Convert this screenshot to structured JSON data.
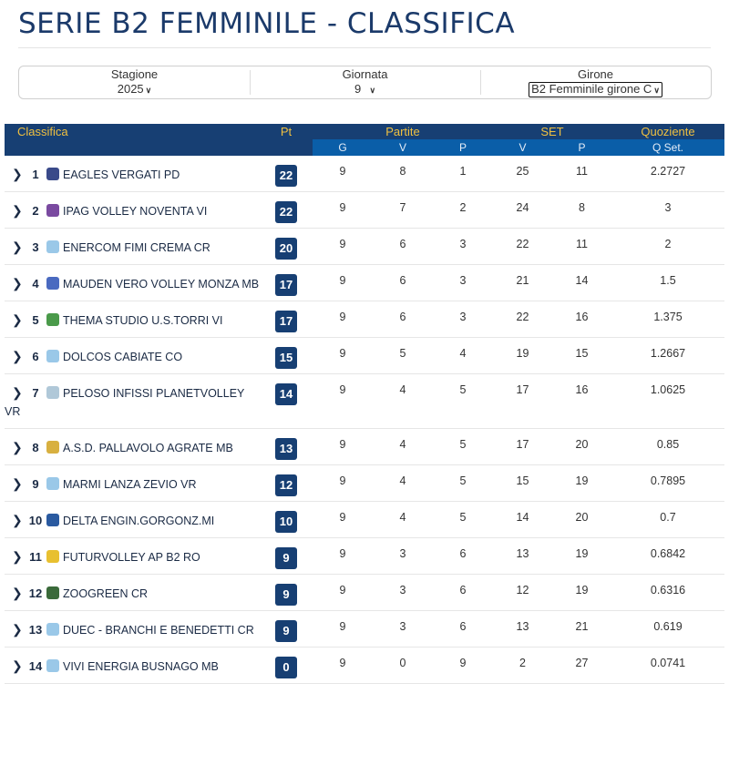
{
  "title": "SERIE B2 FEMMINILE - CLASSIFICA",
  "filters": [
    {
      "label": "Stagione",
      "value": "2025"
    },
    {
      "label": "Giornata",
      "value": "9"
    },
    {
      "label": "Girone",
      "value": "B2 Femminile girone C"
    }
  ],
  "header": {
    "classifica": "Classifica",
    "pt": "Pt",
    "partite": "Partite",
    "set": "SET",
    "quoziente": "Quoziente",
    "g": "G",
    "v": "V",
    "p": "P",
    "sv": "V",
    "sp": "P",
    "qset": "Q Set."
  },
  "colors": {
    "header": "#173f73",
    "subheader": "#0a5ea8",
    "accent": "#f0c040"
  },
  "rows": [
    {
      "rank": "1",
      "team": "EAGLES VERGATI PD",
      "pt": "22",
      "g": "9",
      "v": "8",
      "p": "1",
      "sv": "25",
      "sp": "11",
      "q": "2.2727",
      "logo": "#3a4a8a"
    },
    {
      "rank": "2",
      "team": "IPAG VOLLEY NOVENTA VI",
      "pt": "22",
      "g": "9",
      "v": "7",
      "p": "2",
      "sv": "24",
      "sp": "8",
      "q": "3",
      "logo": "#7a4aa0"
    },
    {
      "rank": "3",
      "team": "ENERCOM FIMI CREMA CR",
      "pt": "20",
      "g": "9",
      "v": "6",
      "p": "3",
      "sv": "22",
      "sp": "11",
      "q": "2",
      "logo": "#9ac8e8"
    },
    {
      "rank": "4",
      "team": "MAUDEN VERO VOLLEY MONZA MB",
      "pt": "17",
      "g": "9",
      "v": "6",
      "p": "3",
      "sv": "21",
      "sp": "14",
      "q": "1.5",
      "logo": "#4a6ac0"
    },
    {
      "rank": "5",
      "team": "THEMA STUDIO U.S.TORRI VI",
      "pt": "17",
      "g": "9",
      "v": "6",
      "p": "3",
      "sv": "22",
      "sp": "16",
      "q": "1.375",
      "logo": "#4a9a4a"
    },
    {
      "rank": "6",
      "team": "DOLCOS CABIATE CO",
      "pt": "15",
      "g": "9",
      "v": "5",
      "p": "4",
      "sv": "19",
      "sp": "15",
      "q": "1.2667",
      "logo": "#9ac8e8"
    },
    {
      "rank": "7",
      "team": "PELOSO INFISSI PLANETVOLLEY VR",
      "pt": "14",
      "g": "9",
      "v": "4",
      "p": "5",
      "sv": "17",
      "sp": "16",
      "q": "1.0625",
      "logo": "#b0c8d8"
    },
    {
      "rank": "8",
      "team": "A.S.D. PALLAVOLO AGRATE MB",
      "pt": "13",
      "g": "9",
      "v": "4",
      "p": "5",
      "sv": "17",
      "sp": "20",
      "q": "0.85",
      "logo": "#d8b040"
    },
    {
      "rank": "9",
      "team": "MARMI LANZA ZEVIO VR",
      "pt": "12",
      "g": "9",
      "v": "4",
      "p": "5",
      "sv": "15",
      "sp": "19",
      "q": "0.7895",
      "logo": "#9ac8e8"
    },
    {
      "rank": "10",
      "team": "DELTA ENGIN.GORGONZ.MI",
      "pt": "10",
      "g": "9",
      "v": "4",
      "p": "5",
      "sv": "14",
      "sp": "20",
      "q": "0.7",
      "logo": "#2a5aa0"
    },
    {
      "rank": "11",
      "team": "FUTURVOLLEY AP B2 RO",
      "pt": "9",
      "g": "9",
      "v": "3",
      "p": "6",
      "sv": "13",
      "sp": "19",
      "q": "0.6842",
      "logo": "#e8c030"
    },
    {
      "rank": "12",
      "team": "ZOOGREEN CR",
      "pt": "9",
      "g": "9",
      "v": "3",
      "p": "6",
      "sv": "12",
      "sp": "19",
      "q": "0.6316",
      "logo": "#3a6a3a"
    },
    {
      "rank": "13",
      "team": "DUEC - BRANCHI E BENEDETTI CR",
      "pt": "9",
      "g": "9",
      "v": "3",
      "p": "6",
      "sv": "13",
      "sp": "21",
      "q": "0.619",
      "logo": "#9ac8e8"
    },
    {
      "rank": "14",
      "team": "VIVI ENERGIA BUSNAGO MB",
      "pt": "0",
      "g": "9",
      "v": "0",
      "p": "9",
      "sv": "2",
      "sp": "27",
      "q": "0.0741",
      "logo": "#9ac8e8"
    }
  ]
}
